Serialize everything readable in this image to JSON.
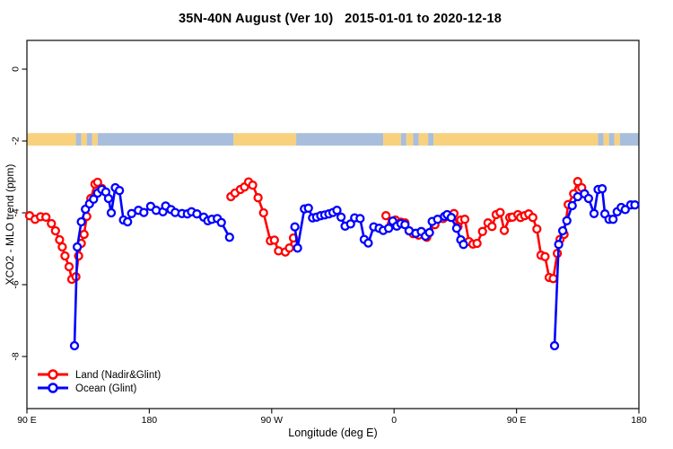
{
  "chart_data": {
    "type": "line",
    "title": "35N-40N August (Ver 10)   2015-01-01 to 2020-12-18",
    "xlabel": "Longitude (deg E)",
    "ylabel": "XCO2 - MLO trend (ppm)",
    "grid": false,
    "x_axis": {
      "description": "longitude axis spans 450 degrees eastward starting at 90E (wraps past 180 through 90W, 0, 90E to 180)",
      "tick_positions_deg": [
        0,
        90,
        180,
        270,
        360,
        450
      ],
      "tick_labels": [
        "90 E",
        "180",
        "90 W",
        "0",
        "90 E",
        "180"
      ],
      "range_deg": [
        0,
        450
      ]
    },
    "y_axis": {
      "ticks": [
        0,
        -2,
        -4,
        -6,
        -8
      ],
      "range": [
        -9.45,
        0.8
      ]
    },
    "legend": {
      "position": "bottom-left",
      "entries": [
        "Land (Nadir&Glint)",
        "Ocean (Glint)"
      ]
    },
    "map_band": {
      "description": "land/ocean strip for latitude band drawn across plot near y=-2",
      "y_top": -1.78,
      "y_bottom": -2.13,
      "land_color": "#F8D17F",
      "ocean_color": "#A9BEDC",
      "segments_deg": [
        [
          0,
          36,
          "land"
        ],
        [
          36,
          40,
          "ocean"
        ],
        [
          40,
          44,
          "land"
        ],
        [
          44,
          48,
          "ocean"
        ],
        [
          48,
          52,
          "land"
        ],
        [
          52,
          152,
          "ocean"
        ],
        [
          152,
          198,
          "land"
        ],
        [
          198,
          262,
          "ocean"
        ],
        [
          262,
          275,
          "land"
        ],
        [
          275,
          279,
          "ocean"
        ],
        [
          279,
          284,
          "land"
        ],
        [
          284,
          288,
          "ocean"
        ],
        [
          288,
          295,
          "land"
        ],
        [
          295,
          299,
          "ocean"
        ],
        [
          299,
          420,
          "land"
        ],
        [
          420,
          424,
          "ocean"
        ],
        [
          424,
          428,
          "land"
        ],
        [
          428,
          432,
          "ocean"
        ],
        [
          432,
          436,
          "land"
        ],
        [
          436,
          450,
          "ocean"
        ]
      ]
    },
    "series": [
      {
        "name": "Land (Nadir&Glint)",
        "color": "#FF0000",
        "marker": "open-circle",
        "segments": [
          [
            [
              2,
              -4.08
            ],
            [
              6,
              -4.18
            ],
            [
              10,
              -4.11
            ],
            [
              14,
              -4.12
            ],
            [
              18,
              -4.3
            ],
            [
              21,
              -4.5
            ],
            [
              24,
              -4.75
            ],
            [
              26,
              -4.95
            ],
            [
              28,
              -5.2
            ],
            [
              31,
              -5.5
            ],
            [
              33,
              -5.85
            ],
            [
              36,
              -5.78
            ],
            [
              38,
              -5.2
            ],
            [
              40,
              -4.85
            ],
            [
              42,
              -4.6
            ],
            [
              44,
              -4.1
            ],
            [
              47,
              -3.6
            ],
            [
              50,
              -3.2
            ],
            [
              52,
              -3.15
            ],
            [
              55,
              -3.32
            ]
          ],
          [
            [
              150,
              -3.55
            ],
            [
              153,
              -3.45
            ],
            [
              157,
              -3.35
            ],
            [
              160,
              -3.28
            ],
            [
              163,
              -3.14
            ],
            [
              166,
              -3.23
            ],
            [
              170,
              -3.58
            ],
            [
              174,
              -4.0
            ],
            [
              179,
              -4.78
            ],
            [
              182,
              -4.76
            ],
            [
              185,
              -5.06
            ],
            [
              190,
              -5.09
            ],
            [
              193,
              -4.98
            ],
            [
              196,
              -4.7
            ]
          ],
          [
            [
              264,
              -4.08
            ],
            [
              268,
              -4.31
            ],
            [
              271,
              -4.2
            ],
            [
              275,
              -4.26
            ],
            [
              278,
              -4.28
            ],
            [
              281,
              -4.5
            ],
            [
              284,
              -4.58
            ],
            [
              288,
              -4.62
            ],
            [
              294,
              -4.68
            ],
            [
              300,
              -4.33
            ],
            [
              306,
              -4.16
            ],
            [
              310,
              -4.1
            ],
            [
              314,
              -4.02
            ],
            [
              317,
              -4.38
            ],
            [
              319,
              -4.2
            ],
            [
              322,
              -4.18
            ],
            [
              325,
              -4.8
            ],
            [
              328,
              -4.87
            ],
            [
              331,
              -4.85
            ],
            [
              335,
              -4.52
            ],
            [
              339,
              -4.28
            ],
            [
              342,
              -4.38
            ],
            [
              345,
              -4.05
            ],
            [
              348,
              -3.99
            ],
            [
              351,
              -4.49
            ],
            [
              355,
              -4.13
            ],
            [
              357,
              -4.12
            ],
            [
              361,
              -4.05
            ],
            [
              363,
              -4.13
            ],
            [
              366,
              -4.08
            ],
            [
              369,
              -4.03
            ],
            [
              372,
              -4.13
            ],
            [
              375,
              -4.45
            ],
            [
              378,
              -5.18
            ],
            [
              381,
              -5.22
            ],
            [
              384,
              -5.8
            ],
            [
              387,
              -5.83
            ],
            [
              390,
              -5.13
            ],
            [
              392,
              -4.74
            ],
            [
              395,
              -4.6
            ],
            [
              398,
              -3.77
            ],
            [
              402,
              -3.47
            ],
            [
              405,
              -3.13
            ],
            [
              408,
              -3.3
            ]
          ]
        ]
      },
      {
        "name": "Ocean (Glint)",
        "color": "#0000FF",
        "marker": "open-circle",
        "segments": [
          [
            [
              35,
              -7.7
            ],
            [
              37,
              -4.95
            ],
            [
              40,
              -4.25
            ],
            [
              43,
              -3.9
            ],
            [
              46,
              -3.75
            ],
            [
              49,
              -3.62
            ],
            [
              52,
              -3.45
            ],
            [
              55,
              -3.35
            ],
            [
              58,
              -3.42
            ],
            [
              60,
              -3.6
            ],
            [
              62,
              -4.0
            ],
            [
              65,
              -3.3
            ],
            [
              68,
              -3.38
            ],
            [
              71,
              -4.2
            ],
            [
              74,
              -4.25
            ],
            [
              77,
              -4.02
            ],
            [
              82,
              -3.93
            ],
            [
              86,
              -3.99
            ],
            [
              91,
              -3.82
            ],
            [
              95,
              -3.93
            ],
            [
              100,
              -3.97
            ],
            [
              102,
              -3.81
            ],
            [
              106,
              -3.91
            ],
            [
              109,
              -3.99
            ],
            [
              114,
              -4.02
            ],
            [
              118,
              -4.03
            ],
            [
              121,
              -3.97
            ],
            [
              125,
              -4.03
            ],
            [
              130,
              -4.12
            ],
            [
              133,
              -4.22
            ],
            [
              136,
              -4.18
            ],
            [
              140,
              -4.16
            ],
            [
              143,
              -4.27
            ],
            [
              149,
              -4.68
            ]
          ],
          [
            [
              197,
              -4.39
            ],
            [
              199,
              -4.98
            ],
            [
              204,
              -3.89
            ],
            [
              207,
              -3.87
            ],
            [
              210,
              -4.14
            ],
            [
              213,
              -4.12
            ],
            [
              216,
              -4.08
            ],
            [
              219,
              -4.06
            ],
            [
              222,
              -4.03
            ],
            [
              225,
              -3.99
            ],
            [
              228,
              -3.93
            ],
            [
              231,
              -4.12
            ],
            [
              234,
              -4.37
            ],
            [
              238,
              -4.31
            ],
            [
              241,
              -4.14
            ],
            [
              245,
              -4.16
            ],
            [
              248,
              -4.74
            ],
            [
              251,
              -4.84
            ],
            [
              255,
              -4.39
            ],
            [
              259,
              -4.43
            ],
            [
              262,
              -4.49
            ],
            [
              266,
              -4.43
            ],
            [
              269,
              -4.23
            ],
            [
              272,
              -4.37
            ],
            [
              275,
              -4.3
            ],
            [
              278,
              -4.33
            ],
            [
              281,
              -4.5
            ],
            [
              286,
              -4.57
            ],
            [
              290,
              -4.52
            ],
            [
              293,
              -4.65
            ],
            [
              296,
              -4.55
            ],
            [
              298,
              -4.24
            ],
            [
              302,
              -4.18
            ],
            [
              307,
              -4.1
            ],
            [
              309,
              -4.05
            ],
            [
              312,
              -4.13
            ],
            [
              316,
              -4.43
            ],
            [
              319,
              -4.75
            ],
            [
              321,
              -4.88
            ]
          ],
          [
            [
              388,
              -7.7
            ],
            [
              391,
              -4.88
            ],
            [
              394,
              -4.5
            ],
            [
              397,
              -4.22
            ],
            [
              401,
              -3.8
            ],
            [
              405,
              -3.55
            ],
            [
              410,
              -3.47
            ],
            [
              413,
              -3.6
            ],
            [
              417,
              -4.02
            ],
            [
              420,
              -3.35
            ],
            [
              423,
              -3.33
            ],
            [
              425,
              -4.03
            ],
            [
              428,
              -4.18
            ],
            [
              431,
              -4.18
            ],
            [
              434,
              -3.97
            ],
            [
              437,
              -3.85
            ],
            [
              440,
              -3.91
            ],
            [
              444,
              -3.78
            ],
            [
              447,
              -3.78
            ]
          ]
        ]
      }
    ]
  }
}
